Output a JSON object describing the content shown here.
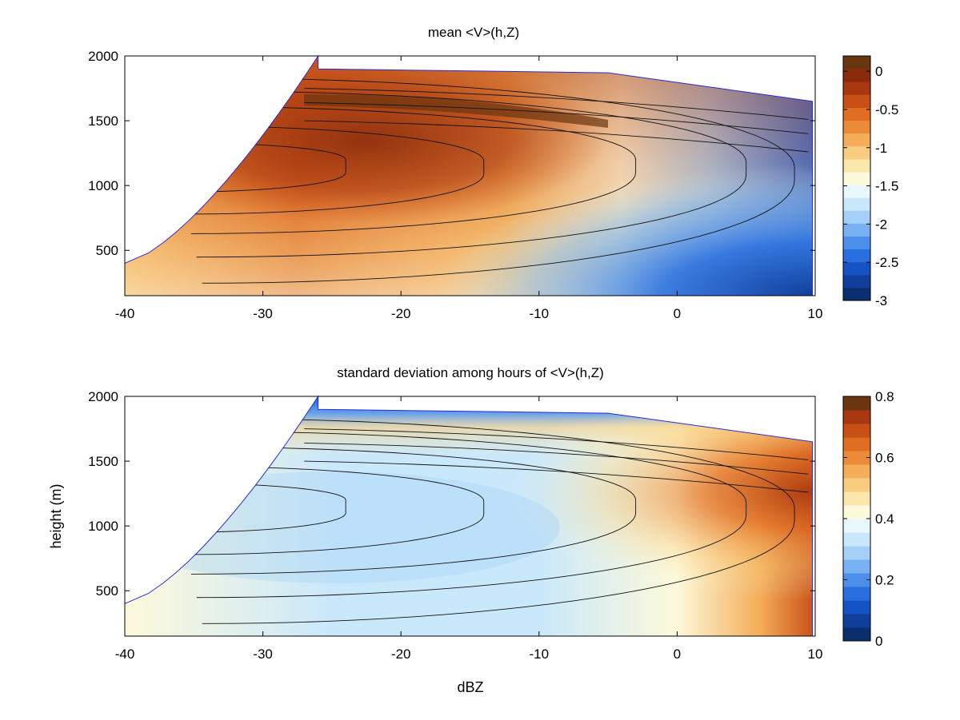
{
  "chart_data": [
    {
      "type": "heatmap",
      "title": "mean <V>(h,Z)",
      "xlabel": "",
      "ylabel": "",
      "xlim": [
        -40,
        10
      ],
      "ylim": [
        150,
        2000
      ],
      "x_ticks": [
        -40,
        -30,
        -20,
        -10,
        0,
        10
      ],
      "y_ticks": [
        500,
        1000,
        1500,
        2000
      ],
      "colorbar": {
        "range": [
          -3,
          0.2
        ],
        "ticks": [
          0,
          -0.5,
          -1,
          -1.5,
          -2,
          -2.5,
          -3
        ],
        "colors": [
          "#0a2f6e",
          "#0f3f9a",
          "#1553c4",
          "#2a6fe0",
          "#4a8fea",
          "#78b2f2",
          "#a4d0f7",
          "#cae8fb",
          "#e9f8fc",
          "#fdf9db",
          "#fbe6ac",
          "#f9cd7f",
          "#f4ad58",
          "#ec8b37",
          "#e06d22",
          "#c84f16",
          "#a93811",
          "#8a2c0c",
          "#6b3510"
        ]
      },
      "field_description": "mean Doppler velocity (m/s) as a function of height and reflectivity: near 0 to -0.5 (brown/red) at low dBZ and upper heights, decreasing to about -2.5 to -3 (blue) at high dBZ near the surface",
      "samples": [
        {
          "x": -38,
          "y": 400,
          "v": -0.9
        },
        {
          "x": -30,
          "y": 500,
          "v": -0.8
        },
        {
          "x": -28,
          "y": 1200,
          "v": -0.3
        },
        {
          "x": -25,
          "y": 1200,
          "v": -0.1
        },
        {
          "x": -20,
          "y": 1700,
          "v": 0.1
        },
        {
          "x": -20,
          "y": 1000,
          "v": -0.5
        },
        {
          "x": -20,
          "y": 400,
          "v": -1.2
        },
        {
          "x": -10,
          "y": 1500,
          "v": -0.6
        },
        {
          "x": -10,
          "y": 800,
          "v": -1.0
        },
        {
          "x": -10,
          "y": 300,
          "v": -1.4
        },
        {
          "x": 0,
          "y": 1500,
          "v": -1.1
        },
        {
          "x": 0,
          "y": 900,
          "v": -1.5
        },
        {
          "x": 0,
          "y": 300,
          "v": -1.8
        },
        {
          "x": 6,
          "y": 1500,
          "v": -1.7
        },
        {
          "x": 7,
          "y": 900,
          "v": -2.2
        },
        {
          "x": 8,
          "y": 400,
          "v": -2.7
        }
      ]
    },
    {
      "type": "heatmap",
      "title": "standard deviation among hours of <V>(h,Z)",
      "xlabel": "dBZ",
      "ylabel": "height (m)",
      "xlim": [
        -40,
        10
      ],
      "ylim": [
        150,
        2000
      ],
      "x_ticks": [
        -40,
        -30,
        -20,
        -10,
        0,
        10
      ],
      "y_ticks": [
        500,
        1000,
        1500,
        2000
      ],
      "colorbar": {
        "range": [
          0,
          0.8
        ],
        "ticks": [
          0.8,
          0.6,
          0.4,
          0.2,
          0
        ],
        "colors": [
          "#0a2f6e",
          "#0f3f9a",
          "#1553c4",
          "#2a6fe0",
          "#4a8fea",
          "#78b2f2",
          "#a4d0f7",
          "#cae8fb",
          "#e9f8fc",
          "#fdf9db",
          "#fbe6ac",
          "#f9cd7f",
          "#f4ad58",
          "#ec8b37",
          "#e06d22",
          "#c84f16",
          "#a93811",
          "#6b3510"
        ]
      },
      "field_description": "standard deviation (m/s) among hours: about 0.3-0.4 (light blue) over most of the domain, low values (blue) in a thin band near the top, high values 0.6-0.8 (orange/brown) at high dBZ",
      "samples": [
        {
          "x": -35,
          "y": 700,
          "v": 0.38
        },
        {
          "x": -25,
          "y": 1100,
          "v": 0.33
        },
        {
          "x": -15,
          "y": 900,
          "v": 0.32
        },
        {
          "x": -20,
          "y": 1800,
          "v": 0.15
        },
        {
          "x": -10,
          "y": 1700,
          "v": 0.55
        },
        {
          "x": -5,
          "y": 500,
          "v": 0.42
        },
        {
          "x": 3,
          "y": 1600,
          "v": 0.6
        },
        {
          "x": 7,
          "y": 1400,
          "v": 0.7
        },
        {
          "x": 8,
          "y": 400,
          "v": 0.72
        }
      ]
    }
  ]
}
